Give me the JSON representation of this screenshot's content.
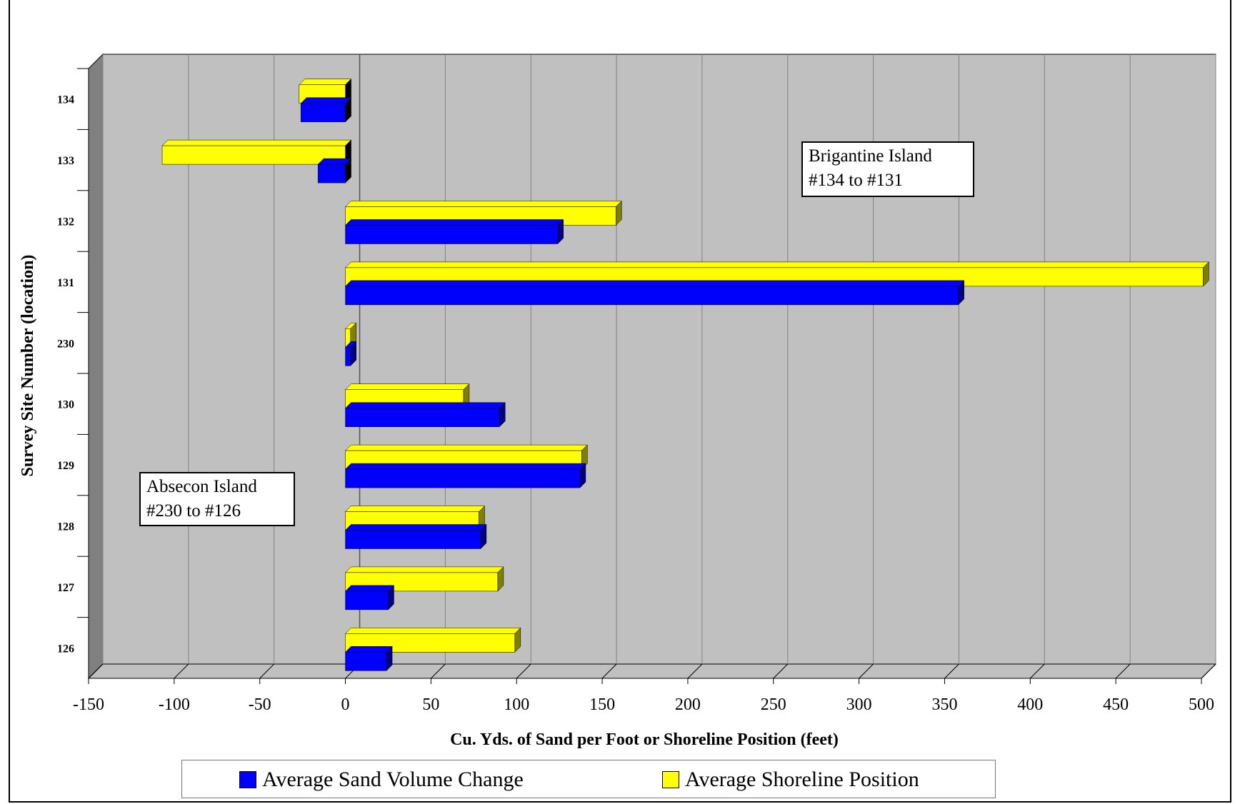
{
  "chart_data": {
    "type": "bar",
    "orientation": "horizontal",
    "title": "",
    "xlabel": "Cu. Yds. of Sand per Foot or Shoreline Position (feet)",
    "ylabel": "Survey Site Number (location)",
    "xlim": [
      -150,
      500
    ],
    "x_ticks": [
      -150,
      -100,
      -50,
      0,
      50,
      100,
      150,
      200,
      250,
      300,
      350,
      400,
      450,
      500
    ],
    "categories": [
      "134",
      "133",
      "132",
      "131",
      "230",
      "130",
      "129",
      "128",
      "127",
      "126"
    ],
    "series": [
      {
        "name": "Average Sand Volume Change",
        "color": "#0000ff",
        "values": [
          -26,
          -16,
          124,
          358,
          3,
          90,
          137,
          79,
          25,
          24
        ]
      },
      {
        "name": "Average Shoreline Position",
        "color": "#ffff00",
        "values": [
          -27,
          -107,
          158,
          501,
          3,
          69,
          138,
          78,
          89,
          99
        ]
      }
    ],
    "grid": true,
    "legend_position": "bottom",
    "annotations": [
      {
        "line1": "Brigantine Island",
        "line2": "#134 to #131"
      },
      {
        "line1": "Absecon Island",
        "line2": "#230 to #126"
      }
    ]
  },
  "colors": {
    "plot_background": "#c0c0c0",
    "side_wall": "#808080",
    "grid_line": "#808080",
    "bar_shadow_blue": "#000080",
    "bar_shadow_yellow": "#808000"
  }
}
